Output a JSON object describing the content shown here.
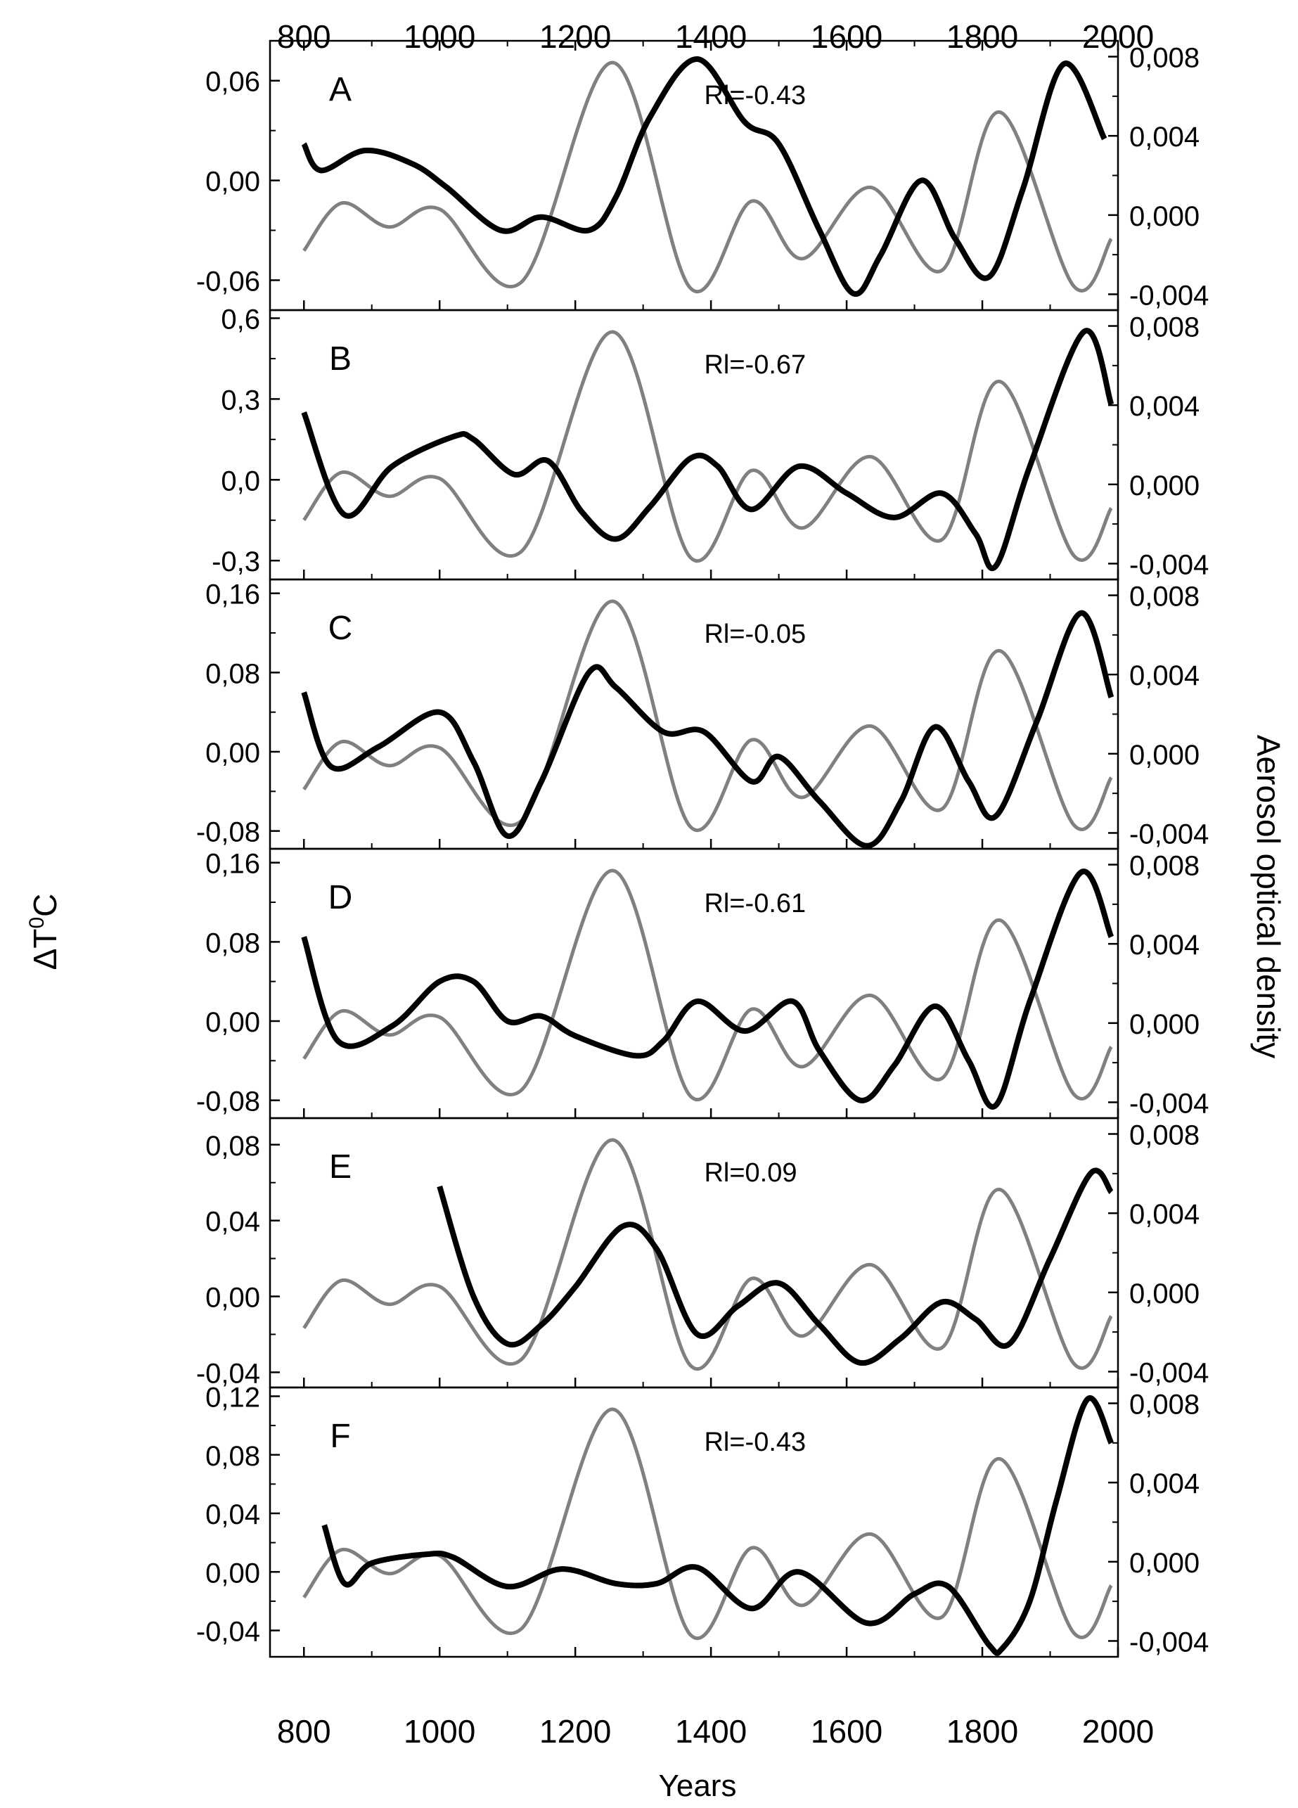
{
  "chart_data": {
    "type": "line",
    "title": "",
    "xlabel": "Years",
    "ylabel_left": "ΔT⁰C",
    "ylabel_right": "Aerosol optical density",
    "xlim": [
      750,
      2000
    ],
    "x_ticks": [
      800,
      1000,
      1200,
      1400,
      1600,
      1800,
      2000
    ],
    "right_ticks": [
      "0,008",
      "0,004",
      "0,000",
      "-0,004"
    ],
    "right_tick_values": [
      0.008,
      0.004,
      0.0,
      -0.004
    ],
    "right_ylim": [
      -0.0048,
      0.0088
    ],
    "series_names": [
      "ΔT (temperature anomaly)",
      "Aerosol optical density"
    ],
    "colors": {
      "temperature": "#000000",
      "aerosol": "#808080"
    },
    "aerosol_series": {
      "x": [
        800,
        855,
        925,
        1000,
        1120,
        1255,
        1370,
        1460,
        1535,
        1635,
        1740,
        1825,
        1935,
        1990
      ],
      "values": [
        -0.0018,
        0.0006,
        -0.0006,
        0.0003,
        -0.0034,
        0.0077,
        -0.0037,
        0.0007,
        -0.0022,
        0.0014,
        -0.0028,
        0.0052,
        -0.0036,
        -0.0012
      ]
    },
    "panels": [
      {
        "label": "A",
        "r_text": "Rl=-0.43",
        "ylim": [
          -0.078,
          0.084
        ],
        "ticks": [
          0.06,
          0.0,
          -0.06
        ],
        "tick_labels": [
          "0,06",
          "0,00",
          "-0,06"
        ],
        "temperature": {
          "x": [
            800,
            825,
            890,
            960,
            1010,
            1090,
            1150,
            1220,
            1260,
            1310,
            1380,
            1450,
            1500,
            1560,
            1610,
            1650,
            1710,
            1760,
            1810,
            1860,
            1920,
            1980
          ],
          "y": [
            0.022,
            0.006,
            0.018,
            0.01,
            -0.004,
            -0.03,
            -0.022,
            -0.03,
            -0.01,
            0.038,
            0.073,
            0.035,
            0.022,
            -0.03,
            -0.068,
            -0.045,
            0.0,
            -0.035,
            -0.058,
            -0.005,
            0.07,
            0.025
          ]
        }
      },
      {
        "label": "B",
        "r_text": "Rl=-0.67",
        "ylim": [
          -0.37,
          0.63
        ],
        "ticks": [
          0.6,
          0.3,
          0.0,
          -0.3
        ],
        "tick_labels": [
          "0,6",
          "0,3",
          "0,0",
          "-0,3"
        ],
        "temperature": {
          "x": [
            800,
            860,
            930,
            1020,
            1050,
            1110,
            1160,
            1210,
            1260,
            1310,
            1370,
            1410,
            1460,
            1530,
            1600,
            1670,
            1740,
            1790,
            1820,
            1870,
            1950,
            1990
          ],
          "y": [
            0.25,
            -0.13,
            0.05,
            0.16,
            0.15,
            0.02,
            0.07,
            -0.12,
            -0.22,
            -0.1,
            0.08,
            0.05,
            -0.11,
            0.05,
            -0.05,
            -0.14,
            -0.05,
            -0.2,
            -0.32,
            0.05,
            0.55,
            0.28
          ]
        }
      },
      {
        "label": "C",
        "r_text": "Rl=-0.05",
        "ylim": [
          -0.098,
          0.174
        ],
        "ticks": [
          0.16,
          0.08,
          0.0,
          -0.08
        ],
        "tick_labels": [
          "0,16",
          "0,08",
          "0,00",
          "-0,08"
        ],
        "temperature": {
          "x": [
            800,
            840,
            910,
            1000,
            1050,
            1100,
            1150,
            1220,
            1260,
            1330,
            1390,
            1460,
            1500,
            1560,
            1630,
            1680,
            1730,
            1780,
            1820,
            1880,
            1945,
            1990
          ],
          "y": [
            0.06,
            -0.015,
            0.005,
            0.04,
            -0.01,
            -0.085,
            -0.03,
            0.08,
            0.065,
            0.02,
            0.02,
            -0.03,
            -0.005,
            -0.05,
            -0.095,
            -0.05,
            0.025,
            -0.03,
            -0.065,
            0.03,
            0.14,
            0.055
          ]
        }
      },
      {
        "label": "D",
        "r_text": "Rl=-0.61",
        "ylim": [
          -0.098,
          0.174
        ],
        "ticks": [
          0.16,
          0.08,
          0.0,
          -0.08
        ],
        "tick_labels": [
          "0,16",
          "0,08",
          "0,00",
          "-0,08"
        ],
        "temperature": {
          "x": [
            800,
            850,
            930,
            1000,
            1050,
            1100,
            1150,
            1200,
            1290,
            1330,
            1380,
            1450,
            1520,
            1560,
            1620,
            1670,
            1730,
            1780,
            1820,
            1870,
            1945,
            1990
          ],
          "y": [
            0.085,
            -0.02,
            -0.005,
            0.04,
            0.04,
            0.0,
            0.005,
            -0.015,
            -0.035,
            -0.02,
            0.02,
            -0.01,
            0.02,
            -0.03,
            -0.08,
            -0.045,
            0.015,
            -0.04,
            -0.085,
            0.02,
            0.15,
            0.085
          ]
        }
      },
      {
        "label": "E",
        "r_text": "Rl=0.09",
        "ylim": [
          -0.048,
          0.094
        ],
        "ticks": [
          0.08,
          0.04,
          0.0,
          -0.04
        ],
        "tick_labels": [
          "0,08",
          "0,04",
          "0,00",
          "-0,04"
        ],
        "temperature": {
          "x": [
            1000,
            1050,
            1100,
            1150,
            1200,
            1270,
            1320,
            1380,
            1440,
            1500,
            1560,
            1620,
            1680,
            1740,
            1790,
            1840,
            1900,
            1960,
            1990
          ],
          "y": [
            0.058,
            0.0,
            -0.025,
            -0.015,
            0.005,
            0.037,
            0.025,
            -0.02,
            -0.005,
            0.007,
            -0.015,
            -0.035,
            -0.022,
            -0.003,
            -0.012,
            -0.025,
            0.02,
            0.065,
            0.055
          ]
        }
      },
      {
        "label": "F",
        "r_text": "Rl=-0.43",
        "ylim": [
          -0.058,
          0.126
        ],
        "ticks": [
          0.12,
          0.08,
          0.04,
          0.0,
          -0.04
        ],
        "tick_labels": [
          "0,12",
          "0,08",
          "0,04",
          "0,00",
          "-0,04"
        ],
        "temperature": {
          "x": [
            830,
            860,
            900,
            980,
            1020,
            1100,
            1180,
            1260,
            1320,
            1380,
            1460,
            1530,
            1630,
            1700,
            1750,
            1810,
            1830,
            1870,
            1910,
            1955,
            1990
          ],
          "y": [
            0.032,
            -0.008,
            0.006,
            0.012,
            0.01,
            -0.01,
            0.002,
            -0.008,
            -0.008,
            0.003,
            -0.025,
            0.0,
            -0.035,
            -0.015,
            -0.01,
            -0.05,
            -0.052,
            -0.02,
            0.05,
            0.118,
            0.088
          ]
        }
      }
    ]
  }
}
